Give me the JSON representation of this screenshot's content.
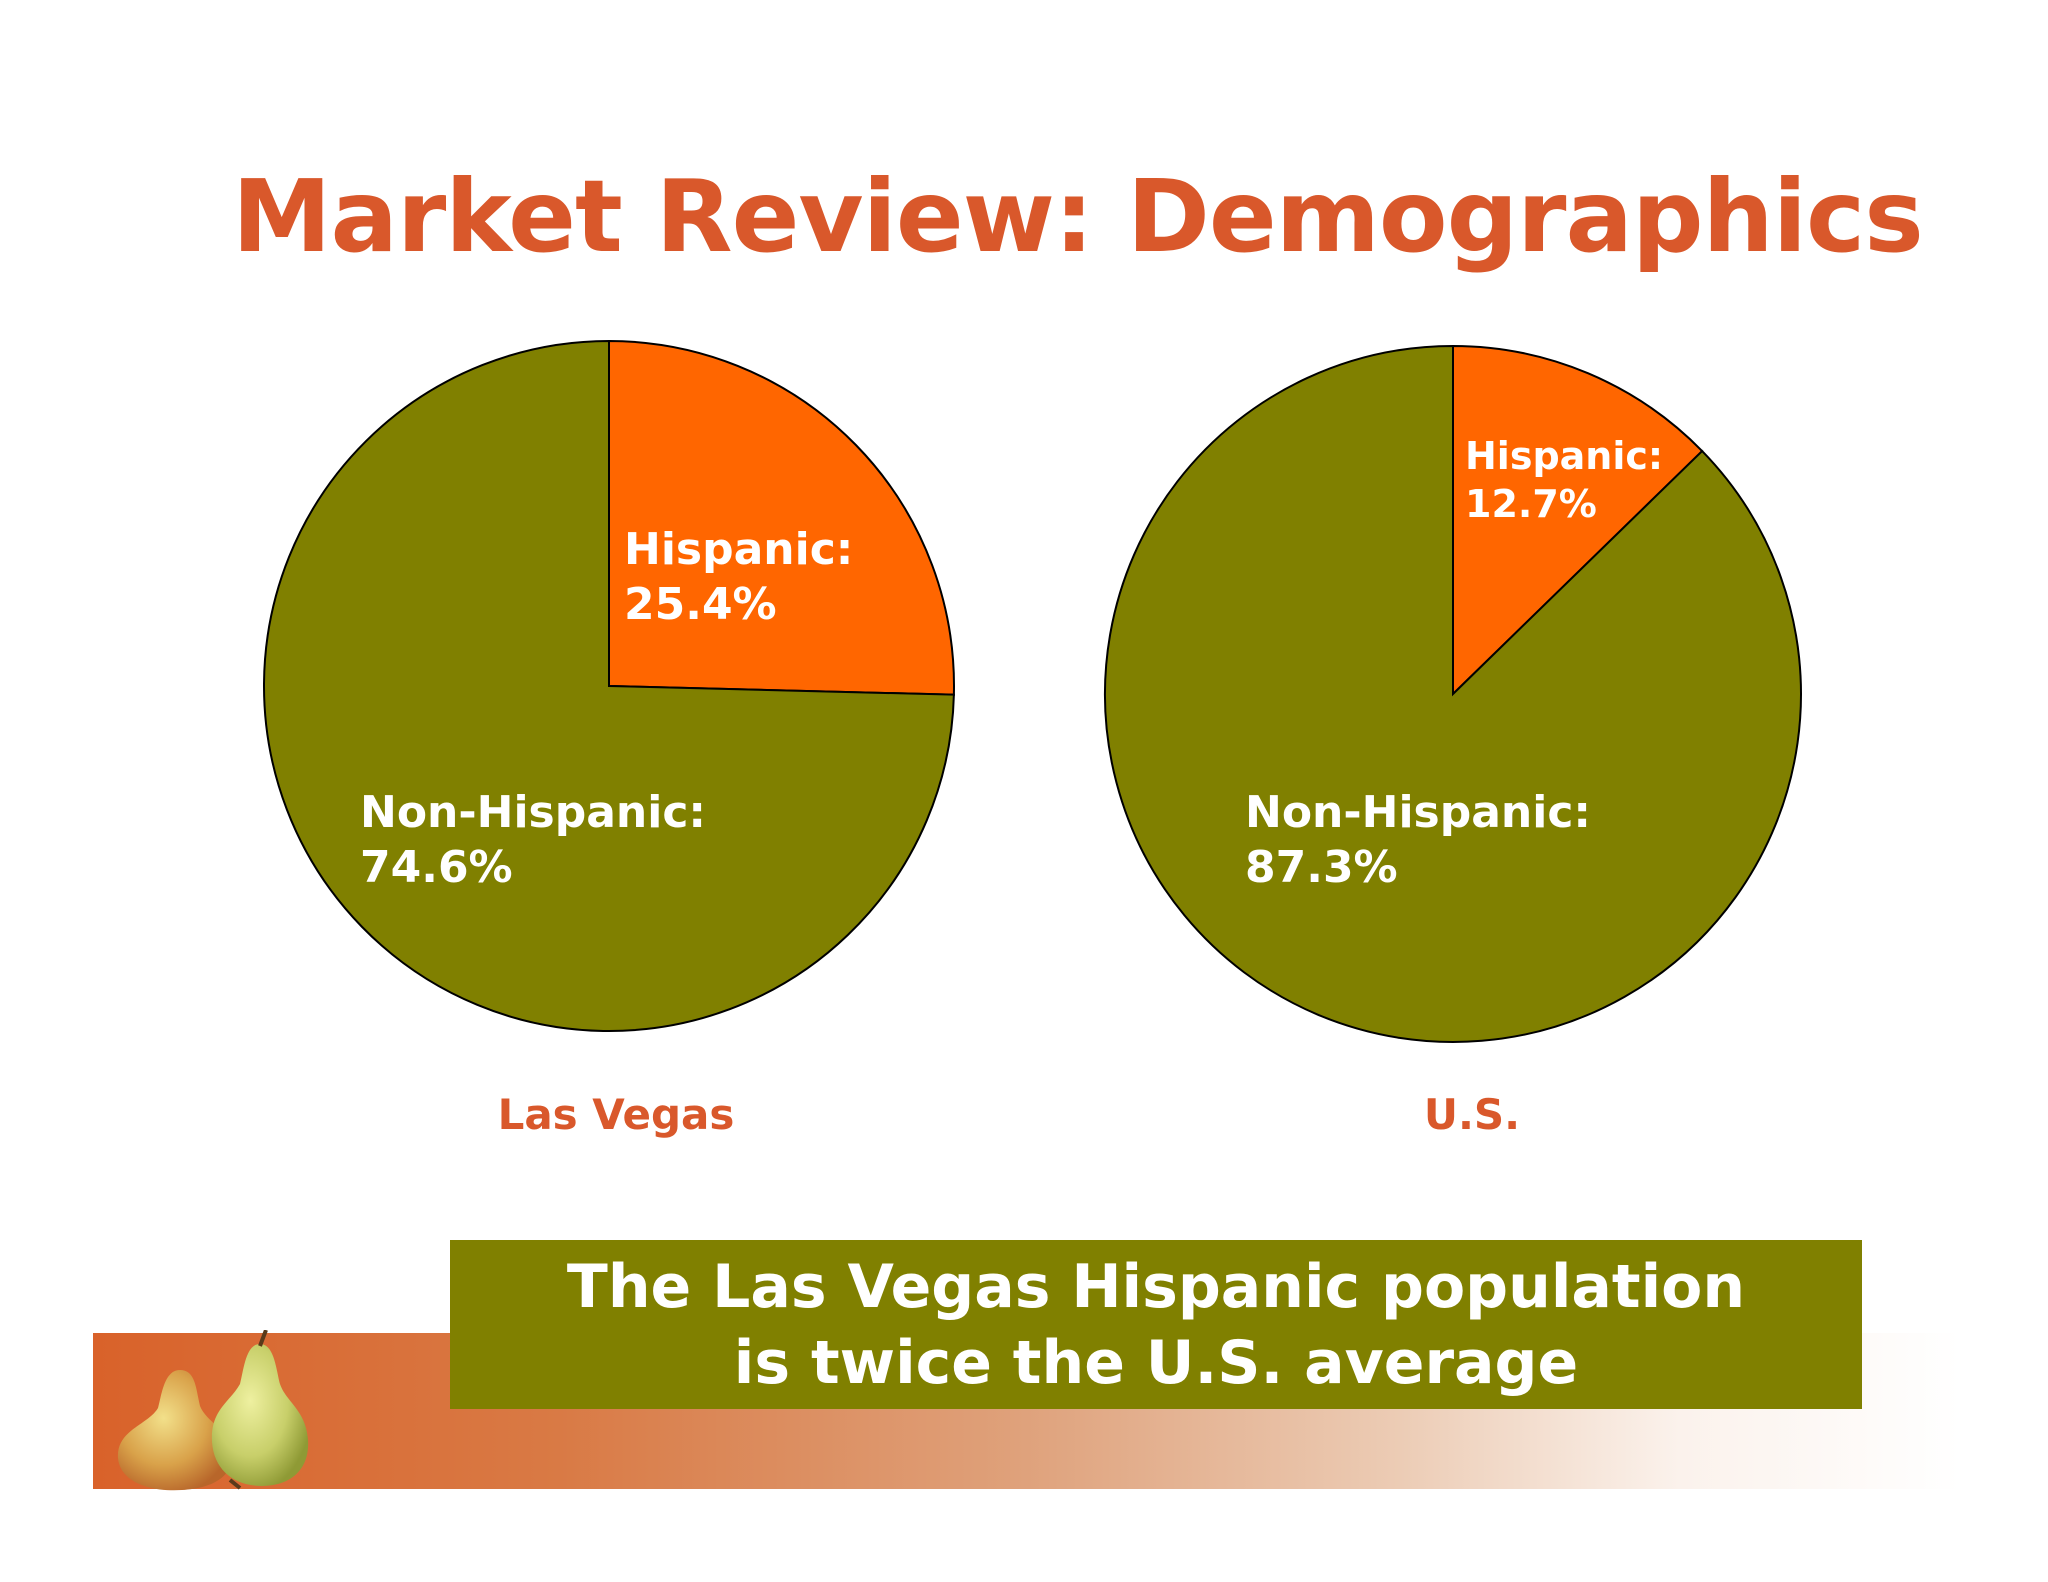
{
  "title": "Market Review: Demographics",
  "colors": {
    "title": "#d9582b",
    "hispanic": "#ff6600",
    "non_hispanic": "#808000",
    "callout_bg": "#808000",
    "label_text": "#ffffff"
  },
  "chart_data": [
    {
      "type": "pie",
      "title": "Las Vegas",
      "slices": [
        {
          "label": "Hispanic:",
          "value": 25.4,
          "value_text": "25.4%",
          "color": "#ff6600"
        },
        {
          "label": "Non-Hispanic:",
          "value": 74.6,
          "value_text": "74.6%",
          "color": "#808000"
        }
      ]
    },
    {
      "type": "pie",
      "title": "U.S.",
      "slices": [
        {
          "label": "Hispanic:",
          "value": 12.7,
          "value_text": "12.7%",
          "color": "#ff6600"
        },
        {
          "label": "Non-Hispanic:",
          "value": 87.3,
          "value_text": "87.3%",
          "color": "#808000"
        }
      ]
    }
  ],
  "callout": {
    "line1": "The Las Vegas Hispanic population",
    "line2": "is twice the U.S. average"
  },
  "decoration": {
    "icon": "pears-icon"
  }
}
